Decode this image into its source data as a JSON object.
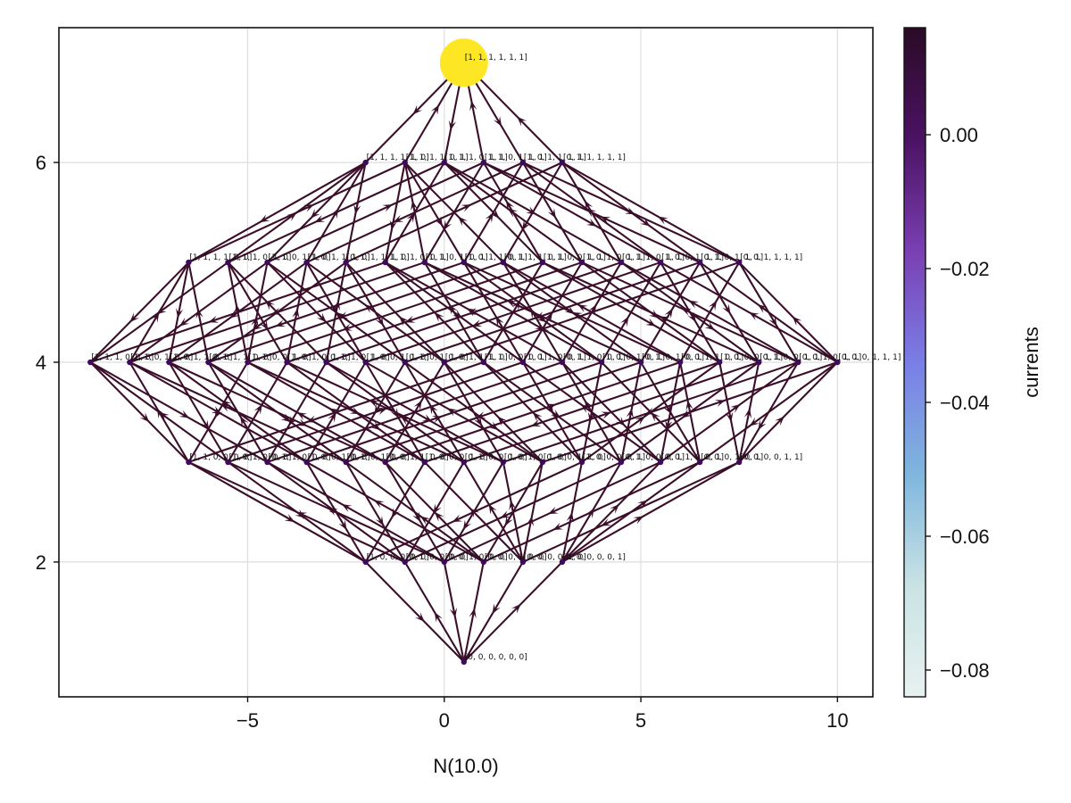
{
  "chart_data": {
    "type": "graph",
    "xlabel": "N(10.0)",
    "ylabel": "",
    "xlim": [
      -9.8,
      10.9
    ],
    "ylim": [
      0.65,
      7.35
    ],
    "xticks": [
      -5,
      0,
      5,
      10
    ],
    "yticks": [
      2,
      4,
      6
    ],
    "xtick_labels": [
      "−5",
      "0",
      "5",
      "10"
    ],
    "ytick_labels": [
      "2",
      "4",
      "6"
    ],
    "grid": true,
    "edge_color": "#3b0f2a",
    "node_color": "#3f0a5e",
    "colorbar": {
      "label": "currents",
      "range": [
        -0.084,
        0.016
      ],
      "ticks": [
        0.0,
        -0.02,
        -0.04,
        -0.06,
        -0.08
      ],
      "tick_labels": [
        "0.00",
        "−0.02",
        "−0.04",
        "−0.06",
        "−0.08"
      ],
      "colors": [
        "#2a0b25",
        "#4b1263",
        "#7a3fb2",
        "#7a7ee6",
        "#7fb6de",
        "#c9e3e4",
        "#e8f1f0"
      ]
    },
    "nodes": [
      {
        "x": 0.5,
        "y": 7,
        "label": "[1, 1, 1, 1, 1, 1]",
        "highlight": true,
        "color": "#fde725"
      },
      {
        "x": -2,
        "y": 6,
        "label": "[1, 1, 1, 1, 1, 0]"
      },
      {
        "x": -1,
        "y": 6,
        "label": "[1, 1, 1, 1, 0, 1]"
      },
      {
        "x": 0,
        "y": 6,
        "label": "[1, 1, 1, 0, 1, 1]"
      },
      {
        "x": 1,
        "y": 6,
        "label": "[1, 1, 0, 1, 1, 1]"
      },
      {
        "x": 2,
        "y": 6,
        "label": "[1, 0, 1, 1, 1, 1]"
      },
      {
        "x": 3,
        "y": 6,
        "label": "[0, 1, 1, 1, 1, 1]"
      },
      {
        "x": -6.5,
        "y": 5,
        "label": "[1, 1, 1, 1, 0, 0]"
      },
      {
        "x": -5.5,
        "y": 5,
        "label": "[1, 1, 1, 0, 1, 0]"
      },
      {
        "x": -4.5,
        "y": 5,
        "label": "[1, 1, 0, 1, 1, 0]"
      },
      {
        "x": -3.5,
        "y": 5,
        "label": "[1, 0, 1, 1, 1, 0]"
      },
      {
        "x": -2.5,
        "y": 5,
        "label": "[0, 1, 1, 1, 1, 0]"
      },
      {
        "x": -1.5,
        "y": 5,
        "label": "[1, 1, 1, 0, 0, 1]"
      },
      {
        "x": -0.5,
        "y": 5,
        "label": "[1, 1, 0, 1, 0, 1]"
      },
      {
        "x": 0.5,
        "y": 5,
        "label": "[1, 0, 1, 1, 0, 1]"
      },
      {
        "x": 1.5,
        "y": 5,
        "label": "[0, 1, 1, 1, 0, 1]"
      },
      {
        "x": 2.5,
        "y": 5,
        "label": "[1, 1, 0, 0, 1, 1]"
      },
      {
        "x": 3.5,
        "y": 5,
        "label": "[1, 0, 1, 0, 1, 1]"
      },
      {
        "x": 4.5,
        "y": 5,
        "label": "[0, 1, 1, 0, 1, 1]"
      },
      {
        "x": 5.5,
        "y": 5,
        "label": "[1, 0, 0, 1, 1, 1]"
      },
      {
        "x": 6.5,
        "y": 5,
        "label": "[0, 1, 0, 1, 1, 1]"
      },
      {
        "x": 7.5,
        "y": 5,
        "label": "[0, 0, 1, 1, 1, 1]"
      },
      {
        "x": -9,
        "y": 4,
        "label": "[1, 1, 1, 0, 0, 0]"
      },
      {
        "x": -8,
        "y": 4,
        "label": "[1, 1, 0, 1, 0, 0]"
      },
      {
        "x": -7,
        "y": 4,
        "label": "[1, 0, 1, 1, 0, 0]"
      },
      {
        "x": -6,
        "y": 4,
        "label": "[0, 1, 1, 1, 0, 0]"
      },
      {
        "x": -5,
        "y": 4,
        "label": "[1, 1, 0, 0, 1, 0]"
      },
      {
        "x": -4,
        "y": 4,
        "label": "[1, 0, 1, 0, 1, 0]"
      },
      {
        "x": -3,
        "y": 4,
        "label": "[0, 1, 1, 0, 1, 0]"
      },
      {
        "x": -2,
        "y": 4,
        "label": "[1, 0, 0, 1, 1, 0]"
      },
      {
        "x": -1,
        "y": 4,
        "label": "[0, 1, 0, 1, 1, 0]"
      },
      {
        "x": 0,
        "y": 4,
        "label": "[0, 0, 1, 1, 1, 0]"
      },
      {
        "x": 1,
        "y": 4,
        "label": "[1, 1, 0, 0, 0, 1]"
      },
      {
        "x": 2,
        "y": 4,
        "label": "[1, 0, 1, 0, 0, 1]"
      },
      {
        "x": 3,
        "y": 4,
        "label": "[0, 1, 1, 0, 0, 1]"
      },
      {
        "x": 4,
        "y": 4,
        "label": "[1, 0, 0, 1, 0, 1]"
      },
      {
        "x": 5,
        "y": 4,
        "label": "[0, 1, 0, 1, 0, 1]"
      },
      {
        "x": 6,
        "y": 4,
        "label": "[0, 0, 1, 1, 0, 1]"
      },
      {
        "x": 7,
        "y": 4,
        "label": "[1, 0, 0, 0, 1, 1]"
      },
      {
        "x": 8,
        "y": 4,
        "label": "[0, 1, 0, 0, 1, 1]"
      },
      {
        "x": 9,
        "y": 4,
        "label": "[0, 0, 1, 0, 1, 1]"
      },
      {
        "x": 10,
        "y": 4,
        "label": "[0, 0, 0, 1, 1, 1]"
      },
      {
        "x": -6.5,
        "y": 3,
        "label": "[1, 1, 0, 0, 0, 0]"
      },
      {
        "x": -5.5,
        "y": 3,
        "label": "[1, 0, 1, 0, 0, 0]"
      },
      {
        "x": -4.5,
        "y": 3,
        "label": "[0, 1, 1, 0, 0, 0]"
      },
      {
        "x": -3.5,
        "y": 3,
        "label": "[1, 0, 0, 1, 0, 0]"
      },
      {
        "x": -2.5,
        "y": 3,
        "label": "[0, 1, 0, 1, 0, 0]"
      },
      {
        "x": -1.5,
        "y": 3,
        "label": "[0, 0, 1, 1, 0, 0]"
      },
      {
        "x": -0.5,
        "y": 3,
        "label": "[1, 0, 0, 0, 1, 0]"
      },
      {
        "x": 0.5,
        "y": 3,
        "label": "[0, 1, 0, 0, 1, 0]"
      },
      {
        "x": 1.5,
        "y": 3,
        "label": "[0, 0, 1, 0, 1, 0]"
      },
      {
        "x": 2.5,
        "y": 3,
        "label": "[0, 0, 0, 1, 1, 0]"
      },
      {
        "x": 3.5,
        "y": 3,
        "label": "[1, 0, 0, 0, 0, 1]"
      },
      {
        "x": 4.5,
        "y": 3,
        "label": "[0, 1, 0, 0, 0, 1]"
      },
      {
        "x": 5.5,
        "y": 3,
        "label": "[0, 0, 1, 0, 0, 1]"
      },
      {
        "x": 6.5,
        "y": 3,
        "label": "[0, 0, 0, 1, 0, 1]"
      },
      {
        "x": 7.5,
        "y": 3,
        "label": "[0, 0, 0, 0, 1, 1]"
      },
      {
        "x": -2,
        "y": 2,
        "label": "[1, 0, 0, 0, 0, 0]"
      },
      {
        "x": -1,
        "y": 2,
        "label": "[0, 1, 0, 0, 0, 0]"
      },
      {
        "x": 0,
        "y": 2,
        "label": "[0, 0, 1, 0, 0, 0]"
      },
      {
        "x": 1,
        "y": 2,
        "label": "[0, 0, 0, 1, 0, 0]"
      },
      {
        "x": 2,
        "y": 2,
        "label": "[0, 0, 0, 0, 1, 0]"
      },
      {
        "x": 3,
        "y": 2,
        "label": "[0, 0, 0, 0, 0, 1]"
      },
      {
        "x": 0.5,
        "y": 1,
        "label": "[0, 0, 0, 0, 0, 0]"
      }
    ]
  }
}
